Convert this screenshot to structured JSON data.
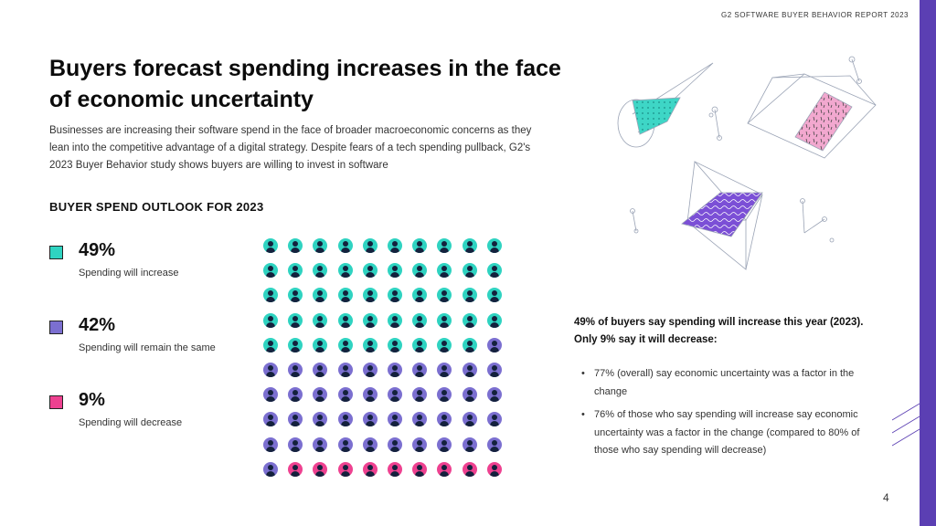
{
  "header": {
    "report_tag": "G2 SOFTWARE BUYER BEHAVIOR REPORT 2023"
  },
  "title": "Buyers forecast spending increases in the face of economic uncertainty",
  "intro": "Businesses are increasing their software spend in the face of broader macroeconomic concerns as they lean into the competitive advantage of a digital strategy. Despite fears of a tech spending pullback, G2's 2023 Buyer Behavior study shows buyers are willing to invest in software",
  "outlook_title": "BUYER SPEND OUTLOOK FOR 2023",
  "legend": [
    {
      "pct": "49%",
      "label": "Spending will increase",
      "color": "#2fd3c1"
    },
    {
      "pct": "42%",
      "label": "Spending will remain the same",
      "color": "#7b6fd0"
    },
    {
      "pct": "9%",
      "label": "Spending will decrease",
      "color": "#ee4190"
    }
  ],
  "chart_data": {
    "type": "waffle",
    "grid": "10x10",
    "categories": [
      "Spending will increase",
      "Spending will remain the same",
      "Spending will decrease"
    ],
    "values": [
      49,
      42,
      9
    ],
    "colors": [
      "#2fd3c1",
      "#7b6fd0",
      "#ee4190"
    ]
  },
  "callout": {
    "heading": "49% of buyers say spending will increase this year (2023). Only 9% say it will decrease:",
    "bullets": [
      "77% (overall) say economic uncertainty was a factor in the change",
      "76% of those who say spending will increase say economic uncertainty was a factor in the change (compared to 80% of those who say spending will decrease)"
    ],
    "bullet_symbol": "•"
  },
  "page_number": "4",
  "brand": {
    "accent": "#5b3fb3"
  }
}
